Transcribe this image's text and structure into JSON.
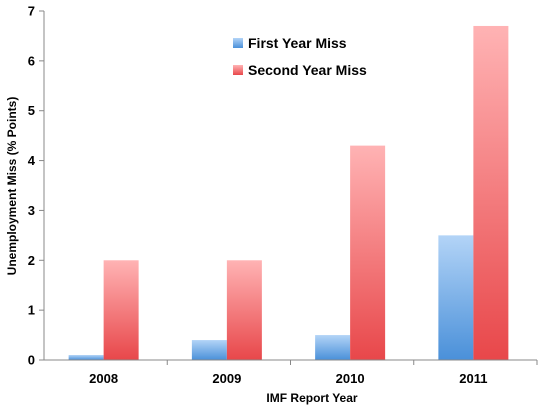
{
  "chart_data": {
    "type": "bar",
    "categories": [
      "2008",
      "2009",
      "2010",
      "2011"
    ],
    "series": [
      {
        "name": "First Year Miss",
        "values": [
          0.1,
          0.4,
          0.5,
          2.5
        ],
        "color": "#4a90d9"
      },
      {
        "name": "Second Year Miss",
        "values": [
          2.0,
          2.0,
          4.3,
          6.7
        ],
        "color": "#e8474a"
      }
    ],
    "title": "",
    "xlabel": "IMF Report Year",
    "ylabel": "Unemployment Miss (% Points)",
    "ylim": [
      0,
      7
    ],
    "yticks": [
      "0",
      "1",
      "2",
      "3",
      "4",
      "5",
      "6",
      "7"
    ],
    "grid": false,
    "legend": "top-center"
  }
}
